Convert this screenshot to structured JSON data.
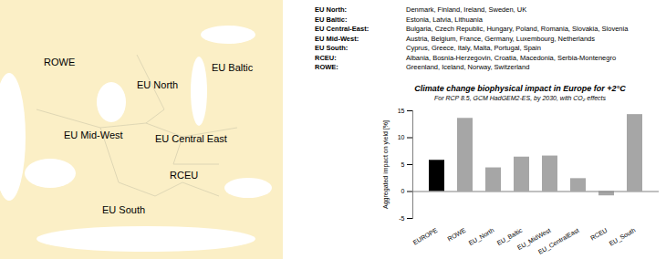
{
  "map": {
    "labels": [
      "ROWE",
      "EU North",
      "EU Baltic",
      "EU Mid-West",
      "EU Central East",
      "RCEU",
      "EU South"
    ]
  },
  "region_table": {
    "rows": [
      {
        "name": "EU North:",
        "countries": "Denmark, Finland, Ireland, Sweden, UK"
      },
      {
        "name": "EU Baltic:",
        "countries": "Estonia, Latvia, Lithuania"
      },
      {
        "name": "EU Central-East:",
        "countries": "Bulgaria, Czech Republic, Hungary, Poland, Romania, Slovakia, Slovenia"
      },
      {
        "name": "EU Mid-West:",
        "countries": "Austria, Belgium, France, Germany, Luxembourg, Netherlands"
      },
      {
        "name": "EU South:",
        "countries": "Cyprus, Greece, Italy, Malta, Portugal, Spain"
      },
      {
        "name": "RCEU:",
        "countries": "Albania, Bosnia-Herzegovin, Croatia, Macedonia, Serbia-Montenegro"
      },
      {
        "name": "ROWE:",
        "countries": "Greenland, Iceland, Norway, Switzerland"
      }
    ]
  },
  "chart_data": {
    "type": "bar",
    "title": "Climate change biophysical impact in Europe for +2°C",
    "subtitle": "For RCP 8.5, GCM HadGEM2-ES, by 2030, with CO₂ effects",
    "ylabel": "Aggregated impact on yield [%]",
    "categories": [
      "EUROPE",
      "ROWE",
      "EU_North",
      "EU_Baltic",
      "EU_MidWest",
      "EU_CentralEast",
      "RCEU",
      "EU_South"
    ],
    "values": [
      5.8,
      13.6,
      4.4,
      6.4,
      6.6,
      2.4,
      -0.8,
      14.3
    ],
    "colors": [
      "#000000",
      "#a6a6a6",
      "#a6a6a6",
      "#a6a6a6",
      "#a6a6a6",
      "#a6a6a6",
      "#a6a6a6",
      "#a6a6a6"
    ],
    "ylim": [
      -5,
      15
    ],
    "yticks": [
      -5,
      0,
      5,
      10,
      15
    ],
    "grid": false
  }
}
